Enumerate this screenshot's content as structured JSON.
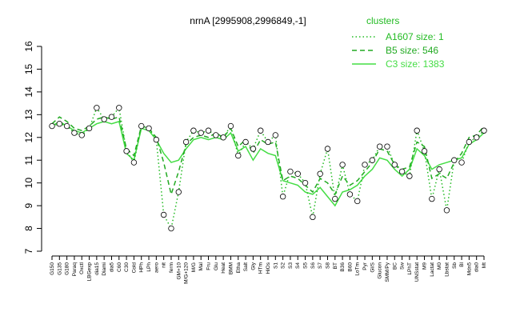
{
  "chart_data": {
    "type": "line",
    "title": "nrnA [2995908,2996849,-1]",
    "legend_title": "clusters",
    "legend_position": "top-right",
    "categories": [
      "G150",
      "G135",
      "G180",
      "Paraq",
      "Oxctl",
      "LBGexp",
      "dia15",
      "Diami",
      "dia5",
      "C60",
      "C30",
      "Cold",
      "HPh",
      "LPh",
      "aero",
      "nit",
      "ferm",
      "GM+10",
      "M/G+120",
      "M/G",
      "Mal",
      "Fru",
      "Glu",
      "Heat",
      "BMM",
      "Etha",
      "Salt",
      "Gly",
      "HTm",
      "HiOs",
      "S1",
      "S2",
      "S3",
      "S4",
      "S5",
      "S6",
      "S7",
      "S8",
      "BT",
      "B36",
      "B60",
      "LoTm",
      "Pyr",
      "Gl/S",
      "Glucon",
      "SMM/Py",
      "BC",
      "Sw",
      "LPhT",
      "UNSstat",
      "M9",
      "Lactat",
      "M0",
      "Lbstat",
      "Sb",
      "Bl",
      "Mdn5",
      "dia0",
      "Mt"
    ],
    "series": [
      {
        "name": "A1607 size: 1",
        "color": "#22bb22",
        "dash": "dotted",
        "points": true,
        "values": [
          12.5,
          12.6,
          12.5,
          12.2,
          12.1,
          12.4,
          13.3,
          12.8,
          12.9,
          13.3,
          11.4,
          10.9,
          12.5,
          12.4,
          11.9,
          8.6,
          8.0,
          9.6,
          11.8,
          12.3,
          12.2,
          12.3,
          12.1,
          12.0,
          12.5,
          11.2,
          11.8,
          11.5,
          12.3,
          11.8,
          12.1,
          9.4,
          10.5,
          10.4,
          10.0,
          8.5,
          10.4,
          11.5,
          9.3,
          10.8,
          9.5,
          9.2,
          10.8,
          11.0,
          11.6,
          11.6,
          10.8,
          10.5,
          10.3,
          12.3,
          11.4,
          9.3,
          10.6,
          8.8,
          11.0,
          10.9,
          11.8,
          12.0,
          12.3
        ]
      },
      {
        "name": "B5 size: 546",
        "color": "#22aa22",
        "dash": "dashed",
        "points": false,
        "values": [
          12.6,
          12.9,
          12.7,
          12.4,
          12.3,
          12.5,
          12.8,
          12.9,
          12.8,
          12.9,
          11.5,
          11.2,
          12.5,
          12.4,
          12.0,
          10.9,
          9.5,
          10.5,
          11.7,
          12.0,
          12.1,
          12.0,
          12.2,
          12.0,
          12.4,
          11.6,
          11.9,
          11.3,
          11.9,
          11.7,
          11.8,
          10.1,
          10.3,
          10.2,
          9.9,
          9.6,
          10.2,
          10.0,
          9.5,
          10.3,
          9.9,
          10.1,
          10.5,
          10.9,
          11.5,
          11.4,
          10.8,
          10.6,
          10.7,
          11.8,
          11.6,
          10.2,
          10.4,
          10.2,
          10.9,
          11.3,
          12.0,
          12.1,
          12.5
        ]
      },
      {
        "name": "C3 size: 1383",
        "color": "#44dd44",
        "dash": "solid",
        "points": false,
        "values": [
          12.5,
          12.7,
          12.5,
          12.3,
          12.2,
          12.4,
          12.6,
          12.7,
          12.6,
          12.7,
          11.3,
          11.0,
          12.4,
          12.3,
          11.9,
          11.3,
          10.9,
          11.0,
          11.5,
          11.9,
          12.0,
          11.9,
          12.0,
          11.9,
          12.2,
          11.4,
          11.6,
          11.0,
          11.5,
          11.3,
          11.2,
          10.1,
          10.0,
          9.9,
          9.6,
          9.5,
          9.8,
          9.4,
          9.0,
          9.6,
          9.7,
          9.9,
          10.3,
          10.6,
          11.1,
          11.0,
          10.6,
          10.3,
          10.6,
          11.5,
          11.2,
          10.6,
          10.8,
          10.9,
          11.0,
          11.1,
          11.7,
          11.9,
          12.2
        ]
      }
    ],
    "ylim": [
      7,
      16
    ],
    "yticks": [
      7,
      8,
      9,
      10,
      11,
      12,
      13,
      14,
      15,
      16
    ]
  }
}
